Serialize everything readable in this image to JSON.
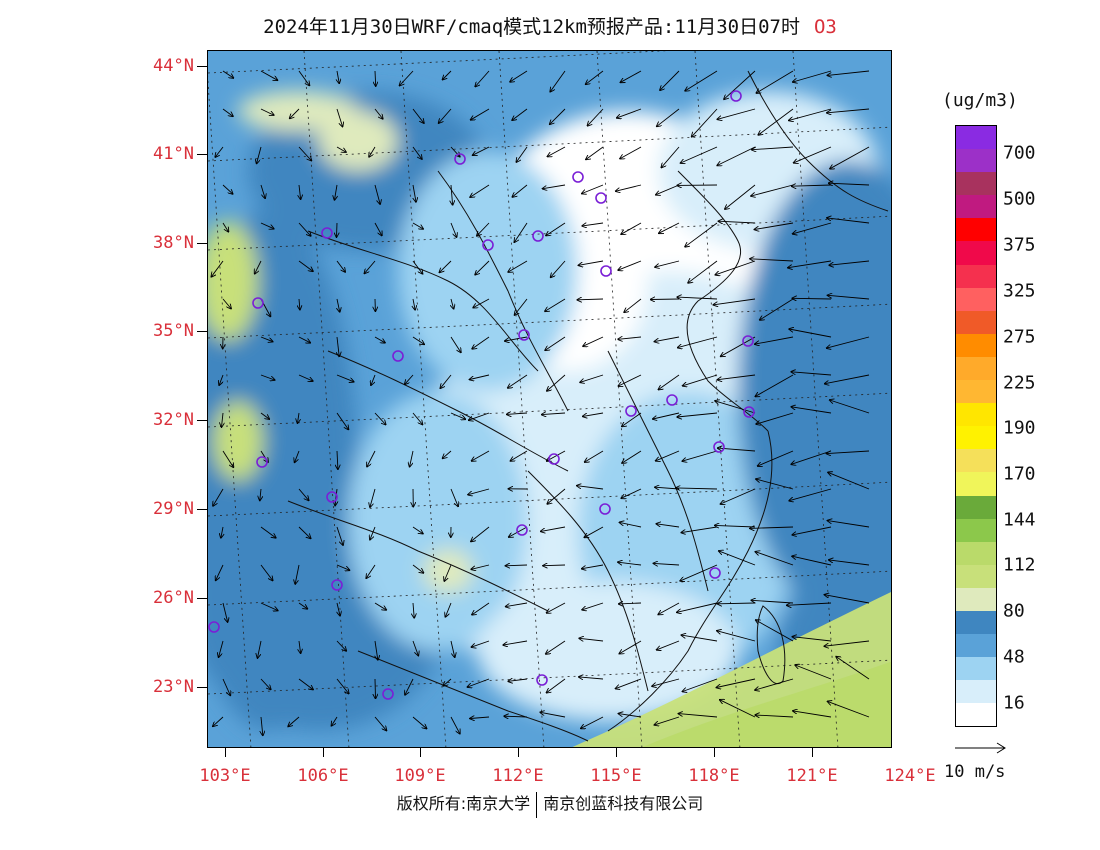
{
  "header": {
    "title": "2024年11月30日WRF/cmaq模式12km预报产品:11月30日07时",
    "pollutant": "O3"
  },
  "map": {
    "lat_labels": [
      "44°N",
      "41°N",
      "38°N",
      "35°N",
      "32°N",
      "29°N",
      "26°N",
      "23°N"
    ],
    "lon_labels": [
      "103°E",
      "106°E",
      "109°E",
      "112°E",
      "115°E",
      "118°E",
      "121°E",
      "124°E"
    ],
    "station_marker": "circle-icon",
    "wind_field": "arrow-icon"
  },
  "legend": {
    "unit": "(ug/m3)",
    "labels": [
      "700",
      "500",
      "375",
      "325",
      "275",
      "225",
      "190",
      "170",
      "144",
      "112",
      "80",
      "48",
      "16"
    ],
    "colors": [
      "#8a2be2",
      "#9c30c8",
      "#a8325e",
      "#c01a80",
      "#ff0000",
      "#f0094a",
      "#f5304e",
      "#ff6060",
      "#f05a28",
      "#ff8c00",
      "#ffaa2a",
      "#ffb732",
      "#ffe600",
      "#fff200",
      "#f5e05a",
      "#f0f55a",
      "#6aaa3a",
      "#8cc84b",
      "#bada6a",
      "#c8e07a",
      "#dfeabd",
      "#3f86c0",
      "#5aa2d8",
      "#9dd3f2",
      "#d8eefa",
      "#ffffff"
    ]
  },
  "wind_reference": {
    "label": "10 m/s"
  },
  "footer": {
    "copyright_left": "版权所有:南京大学",
    "copyright_right": "南京创蓝科技有限公司"
  }
}
